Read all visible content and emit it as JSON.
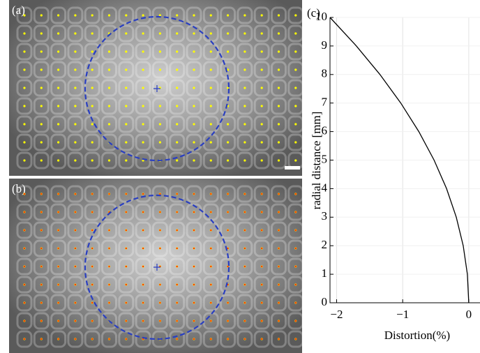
{
  "images": [
    {
      "label": "(a)"
    },
    {
      "label": "(b)"
    }
  ],
  "chart_data": {
    "type": "line",
    "panel_label": "(c)",
    "x_label": "Distortion(%)",
    "y_label": "radial distance [mm]",
    "x": [
      0,
      -0.021,
      -0.084,
      -0.189,
      -0.336,
      -0.525,
      -0.756,
      -1.029,
      -1.344,
      -1.701,
      -2.1
    ],
    "series": [
      {
        "color": "#000000",
        "values": [
          0,
          1,
          2,
          3,
          4,
          5,
          6,
          7,
          8,
          9,
          10
        ]
      }
    ],
    "xlim": [
      -2.1,
      0.17
    ],
    "ylim": [
      0,
      10
    ],
    "xticks": [
      {
        "value": -2,
        "label": "−2"
      },
      {
        "value": -1,
        "label": "−1"
      },
      0
    ],
    "yticks": [
      0,
      1,
      2,
      3,
      4,
      5,
      6,
      7,
      8,
      9,
      10
    ],
    "grid": true
  }
}
